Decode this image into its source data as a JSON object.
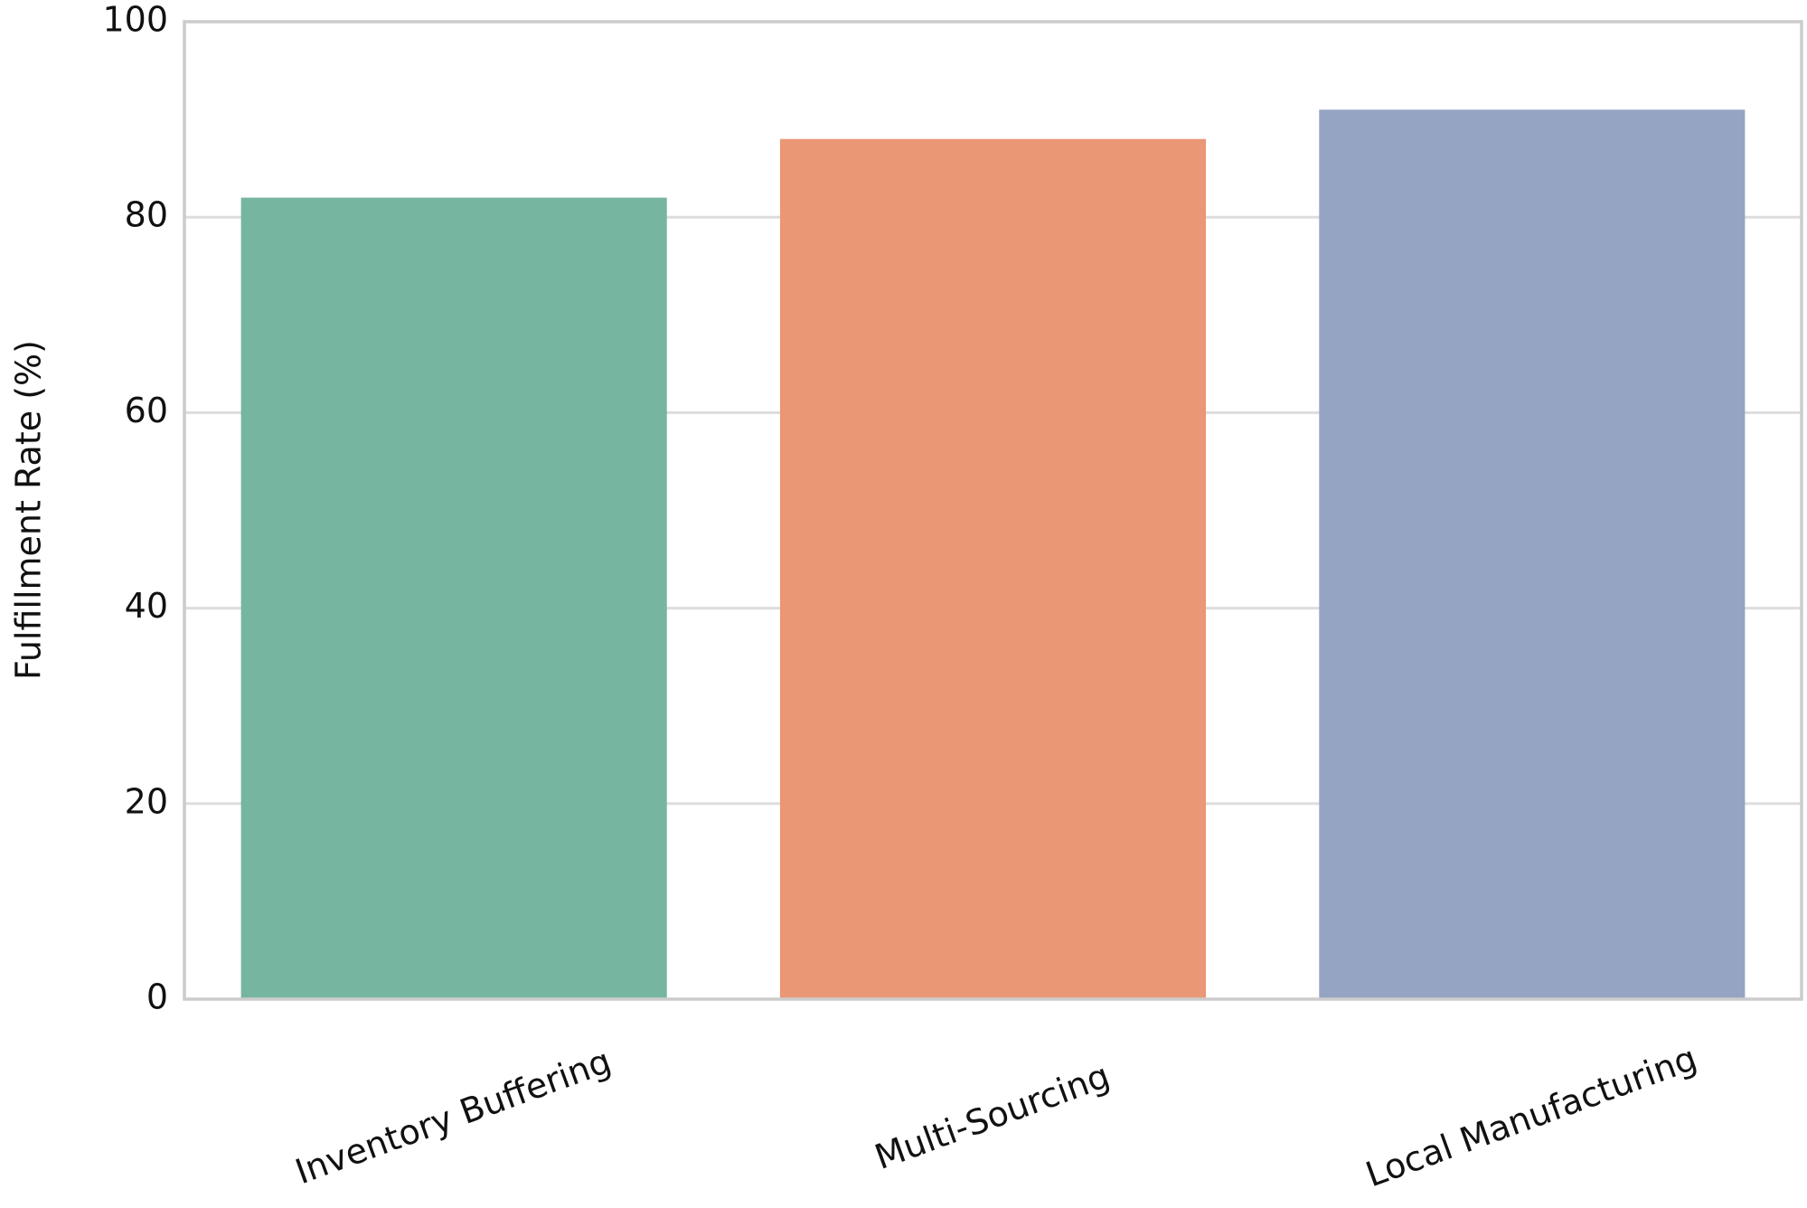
{
  "chart_data": {
    "type": "bar",
    "ylabel": "Fulfillment Rate (%)",
    "categories": [
      "Inventory Buffering",
      "Multi-Sourcing",
      "Local Manufacturing"
    ],
    "values": [
      82,
      88,
      91
    ],
    "colors": [
      "#76b5a0",
      "#ea9775",
      "#95a4c2"
    ],
    "ylim": [
      0,
      100
    ],
    "yticks": [
      0,
      20,
      40,
      60,
      80,
      100
    ],
    "grid": true,
    "xtick_rotation": -20
  }
}
